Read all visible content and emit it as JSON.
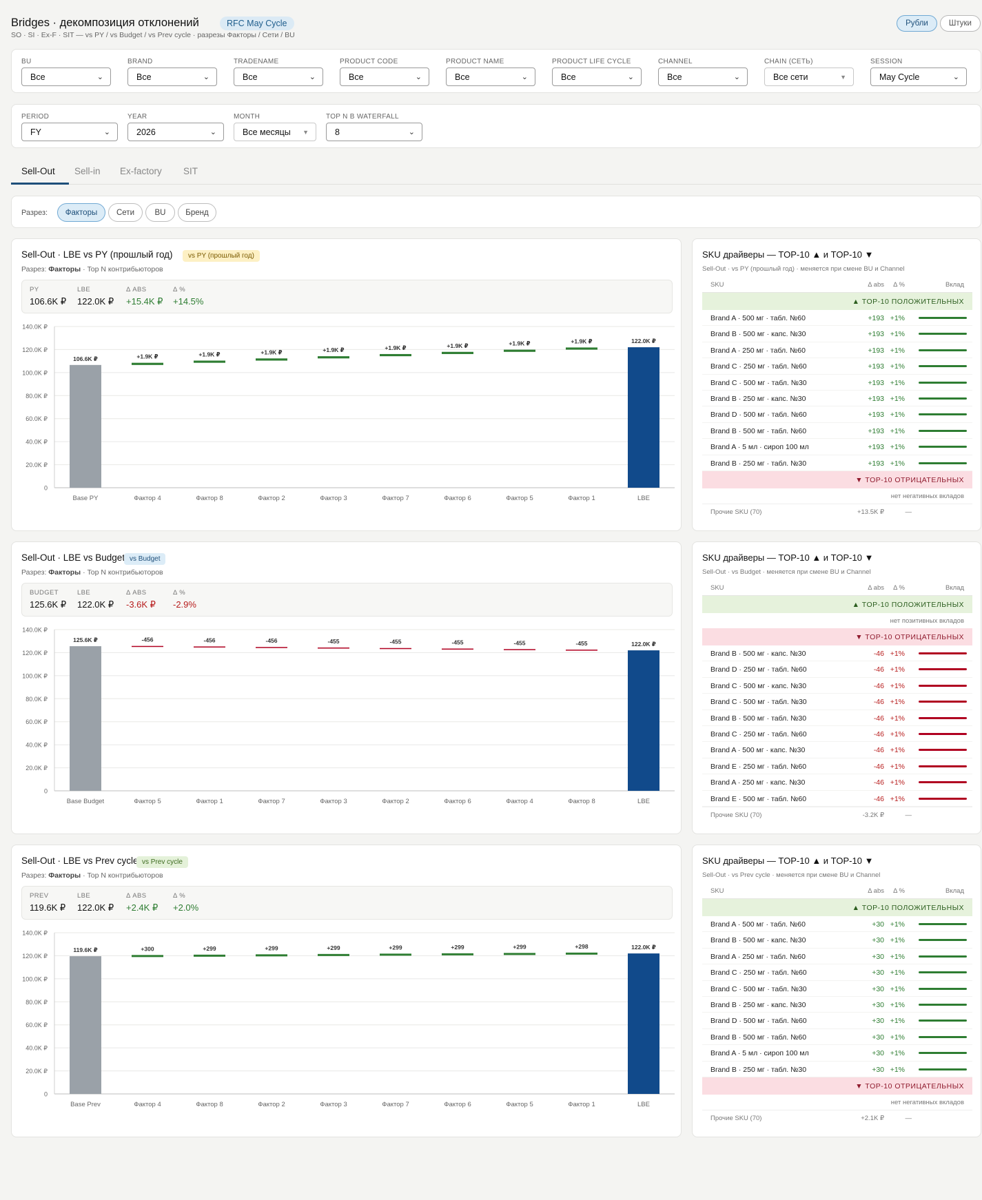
{
  "header": {
    "title": "Bridges · декомпозиция отклонений",
    "cycle_badge": "RFC May Cycle",
    "subtitle": "SO · SI · Ex-F · SIT — vs PY / vs Budget / vs Prev cycle · разрезы Факторы / Сети / BU",
    "units": [
      "Рубли",
      "Штуки"
    ]
  },
  "filters_row1": [
    {
      "label": "BU",
      "value": "Все"
    },
    {
      "label": "BRAND",
      "value": "Все"
    },
    {
      "label": "TRADENAME",
      "value": "Все"
    },
    {
      "label": "PRODUCT CODE",
      "value": "Все"
    },
    {
      "label": "PRODUCT NAME",
      "value": "Все"
    },
    {
      "label": "PRODUCT LIFE CYCLE",
      "value": "Все"
    },
    {
      "label": "CHANNEL",
      "value": "Все"
    },
    {
      "label": "CHAIN (СЕТЬ)",
      "value": "Все сети"
    },
    {
      "label": "SESSION",
      "value": "May Cycle"
    }
  ],
  "filters_row2": [
    {
      "label": "PERIOD",
      "value": "FY"
    },
    {
      "label": "YEAR",
      "value": "2026"
    },
    {
      "label": "MONTH",
      "value": "Все месяцы"
    },
    {
      "label": "TOP N В WATERFALL",
      "value": "8"
    }
  ],
  "tabs": [
    "Sell-Out",
    "Sell-in",
    "Ex-factory",
    "SIT"
  ],
  "razrez": {
    "label": "Разрез:",
    "options": [
      "Факторы",
      "Сети",
      "BU",
      "Бренд"
    ]
  },
  "sku_common": {
    "head_sku": "SKU",
    "head_abs": "Δ abs",
    "head_pct": "Δ %",
    "head_contrib": "Вклад",
    "top_pos": "▲ TOP-10 ПОЛОЖИТЕЛЬНЫХ",
    "top_neg": "▼ TOP-10 ОТРИЦАТЕЛЬНЫХ",
    "no_neg": "нет негативных вкладов",
    "no_pos": "нет позитивных вкладов"
  },
  "colors": {
    "positive": "#2e7d32",
    "negative": "#b00020",
    "base": "#9aa1a8",
    "lbe": "#114a8b"
  },
  "bridges": [
    {
      "title": "Sell-Out · LBE vs PY (прошлый год)",
      "badge": "vs PY (прошлый год)",
      "badge_bg": "#fdf0c4",
      "badge_fg": "#7a5a00",
      "sub_prefix": "Разрез:",
      "sub_bold": "Факторы",
      "sub_rest": "· Top N контрибьюторов",
      "kpis": [
        {
          "label": "PY",
          "value": "106.6K ₽",
          "tone": ""
        },
        {
          "label": "LBE",
          "value": "122.0K ₽",
          "tone": ""
        },
        {
          "label": "Δ ABS",
          "value": "+15.4K ₽",
          "tone": "pos"
        },
        {
          "label": "Δ %",
          "value": "+14.5%",
          "tone": "pos"
        }
      ],
      "chart_data": {
        "type": "bar",
        "subtype": "waterfall",
        "categories": [
          "Base PY",
          "Фактор 4",
          "Фактор 8",
          "Фактор 2",
          "Фактор 3",
          "Фактор 7",
          "Фактор 6",
          "Фактор 5",
          "Фактор 1",
          "LBE"
        ],
        "values": [
          106600,
          1900,
          1900,
          1900,
          1900,
          1900,
          1900,
          1900,
          1900,
          122000
        ],
        "labels": [
          "106.6K ₽",
          "+1.9K ₽",
          "+1.9K ₽",
          "+1.9K ₽",
          "+1.9K ₽",
          "+1.9K ₽",
          "+1.9K ₽",
          "+1.9K ₽",
          "+1.9K ₽",
          "122.0K ₽"
        ],
        "ylim": [
          0,
          140000
        ],
        "yticks": [
          "0",
          "20.0K ₽",
          "40.0K ₽",
          "60.0K ₽",
          "80.0K ₽",
          "100.0K ₽",
          "120.0K ₽",
          "140.0K ₽"
        ],
        "grid": true
      },
      "sku": {
        "title": "SKU драйверы — TOP-10 ▲ и TOP-10 ▼",
        "subtitle": "Sell-Out · vs PY (прошлый год) · меняется при смене BU и Channel",
        "positive": [
          {
            "name": "Brand A · 500 мг · табл. №60",
            "abs": "+193",
            "pct": "+1%"
          },
          {
            "name": "Brand B · 500 мг · капс. №30",
            "abs": "+193",
            "pct": "+1%"
          },
          {
            "name": "Brand A · 250 мг · табл. №60",
            "abs": "+193",
            "pct": "+1%"
          },
          {
            "name": "Brand C · 250 мг · табл. №60",
            "abs": "+193",
            "pct": "+1%"
          },
          {
            "name": "Brand C · 500 мг · табл. №30",
            "abs": "+193",
            "pct": "+1%"
          },
          {
            "name": "Brand B · 250 мг · капс. №30",
            "abs": "+193",
            "pct": "+1%"
          },
          {
            "name": "Brand D · 500 мг · табл. №60",
            "abs": "+193",
            "pct": "+1%"
          },
          {
            "name": "Brand B · 500 мг · табл. №60",
            "abs": "+193",
            "pct": "+1%"
          },
          {
            "name": "Brand A · 5 мл · сироп 100 мл",
            "abs": "+193",
            "pct": "+1%"
          },
          {
            "name": "Brand B · 250 мг · табл. №30",
            "abs": "+193",
            "pct": "+1%"
          }
        ],
        "negative": [],
        "other_name": "Прочие SKU (70)",
        "other_abs": "+13.5K ₽",
        "other_dash": "—"
      }
    },
    {
      "title": "Sell-Out · LBE vs Budget",
      "badge": "vs Budget",
      "badge_bg": "#dcecf7",
      "badge_fg": "#1e4f7a",
      "sub_prefix": "Разрез:",
      "sub_bold": "Факторы",
      "sub_rest": "· Top N контрибьюторов",
      "kpis": [
        {
          "label": "BUDGET",
          "value": "125.6K ₽",
          "tone": ""
        },
        {
          "label": "LBE",
          "value": "122.0K ₽",
          "tone": ""
        },
        {
          "label": "Δ ABS",
          "value": "-3.6K ₽",
          "tone": "neg"
        },
        {
          "label": "Δ %",
          "value": "-2.9%",
          "tone": "neg"
        }
      ],
      "chart_data": {
        "type": "bar",
        "subtype": "waterfall",
        "categories": [
          "Base Budget",
          "Фактор 5",
          "Фактор 1",
          "Фактор 7",
          "Фактор 3",
          "Фактор 2",
          "Фактор 6",
          "Фактор 4",
          "Фактор 8",
          "LBE"
        ],
        "values": [
          125600,
          -456,
          -456,
          -456,
          -455,
          -455,
          -455,
          -455,
          -455,
          122000
        ],
        "labels": [
          "125.6K ₽",
          "-456",
          "-456",
          "-456",
          "-455",
          "-455",
          "-455",
          "-455",
          "-455",
          "122.0K ₽"
        ],
        "ylim": [
          0,
          140000
        ],
        "yticks": [
          "0",
          "20.0K ₽",
          "40.0K ₽",
          "60.0K ₽",
          "80.0K ₽",
          "100.0K ₽",
          "120.0K ₽",
          "140.0K ₽"
        ],
        "grid": true
      },
      "sku": {
        "title": "SKU драйверы — TOP-10 ▲ и TOP-10 ▼",
        "subtitle": "Sell-Out · vs Budget · меняется при смене BU и Channel",
        "positive": [],
        "negative": [
          {
            "name": "Brand B · 500 мг · капс. №30",
            "abs": "-46",
            "pct": "+1%"
          },
          {
            "name": "Brand D · 250 мг · табл. №60",
            "abs": "-46",
            "pct": "+1%"
          },
          {
            "name": "Brand C · 500 мг · капс. №30",
            "abs": "-46",
            "pct": "+1%"
          },
          {
            "name": "Brand C · 500 мг · табл. №30",
            "abs": "-46",
            "pct": "+1%"
          },
          {
            "name": "Brand B · 500 мг · табл. №30",
            "abs": "-46",
            "pct": "+1%"
          },
          {
            "name": "Brand C · 250 мг · табл. №60",
            "abs": "-46",
            "pct": "+1%"
          },
          {
            "name": "Brand A · 500 мг · капс. №30",
            "abs": "-46",
            "pct": "+1%"
          },
          {
            "name": "Brand E · 250 мг · табл. №60",
            "abs": "-46",
            "pct": "+1%"
          },
          {
            "name": "Brand A · 250 мг · капс. №30",
            "abs": "-46",
            "pct": "+1%"
          },
          {
            "name": "Brand E · 500 мг · табл. №60",
            "abs": "-46",
            "pct": "+1%"
          }
        ],
        "other_name": "Прочие SKU (70)",
        "other_abs": "-3.2K ₽",
        "other_dash": "—"
      }
    },
    {
      "title": "Sell-Out · LBE vs Prev cycle",
      "badge": "vs Prev cycle",
      "badge_bg": "#e4f1d9",
      "badge_fg": "#3d6b1f",
      "sub_prefix": "Разрез:",
      "sub_bold": "Факторы",
      "sub_rest": "· Top N контрибьюторов",
      "kpis": [
        {
          "label": "PREV",
          "value": "119.6K ₽",
          "tone": ""
        },
        {
          "label": "LBE",
          "value": "122.0K ₽",
          "tone": ""
        },
        {
          "label": "Δ ABS",
          "value": "+2.4K ₽",
          "tone": "pos"
        },
        {
          "label": "Δ %",
          "value": "+2.0%",
          "tone": "pos"
        }
      ],
      "chart_data": {
        "type": "bar",
        "subtype": "waterfall",
        "categories": [
          "Base Prev",
          "Фактор 4",
          "Фактор 8",
          "Фактор 2",
          "Фактор 3",
          "Фактор 7",
          "Фактор 6",
          "Фактор 5",
          "Фактор 1",
          "LBE"
        ],
        "values": [
          119600,
          300,
          299,
          299,
          299,
          299,
          299,
          299,
          298,
          122000
        ],
        "labels": [
          "119.6K ₽",
          "+300",
          "+299",
          "+299",
          "+299",
          "+299",
          "+299",
          "+299",
          "+298",
          "122.0K ₽"
        ],
        "ylim": [
          0,
          140000
        ],
        "yticks": [
          "0",
          "20.0K ₽",
          "40.0K ₽",
          "60.0K ₽",
          "80.0K ₽",
          "100.0K ₽",
          "120.0K ₽",
          "140.0K ₽"
        ],
        "grid": true
      },
      "sku": {
        "title": "SKU драйверы — TOP-10 ▲ и TOP-10 ▼",
        "subtitle": "Sell-Out · vs Prev cycle · меняется при смене BU и Channel",
        "positive": [
          {
            "name": "Brand A · 500 мг · табл. №60",
            "abs": "+30",
            "pct": "+1%"
          },
          {
            "name": "Brand B · 500 мг · капс. №30",
            "abs": "+30",
            "pct": "+1%"
          },
          {
            "name": "Brand A · 250 мг · табл. №60",
            "abs": "+30",
            "pct": "+1%"
          },
          {
            "name": "Brand C · 250 мг · табл. №60",
            "abs": "+30",
            "pct": "+1%"
          },
          {
            "name": "Brand C · 500 мг · табл. №30",
            "abs": "+30",
            "pct": "+1%"
          },
          {
            "name": "Brand B · 250 мг · капс. №30",
            "abs": "+30",
            "pct": "+1%"
          },
          {
            "name": "Brand D · 500 мг · табл. №60",
            "abs": "+30",
            "pct": "+1%"
          },
          {
            "name": "Brand B · 500 мг · табл. №60",
            "abs": "+30",
            "pct": "+1%"
          },
          {
            "name": "Brand A · 5 мл · сироп 100 мл",
            "abs": "+30",
            "pct": "+1%"
          },
          {
            "name": "Brand B · 250 мг · табл. №30",
            "abs": "+30",
            "pct": "+1%"
          }
        ],
        "negative": [],
        "other_name": "Прочие SKU (70)",
        "other_abs": "+2.1K ₽",
        "other_dash": "—"
      }
    }
  ]
}
